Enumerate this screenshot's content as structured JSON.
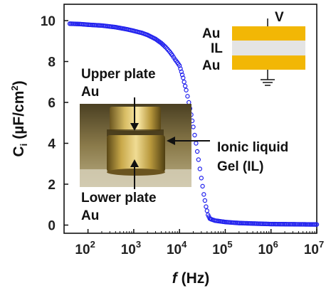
{
  "chart_data": {
    "type": "scatter",
    "xlabel": {
      "italic": "f",
      "rest": " (Hz)"
    },
    "ylabel": {
      "main": "C",
      "sub": "i",
      "rest": " (µF/cm",
      "sup": "2",
      "close": ")"
    },
    "x_scale": "log",
    "xlim": [
      30,
      10000000
    ],
    "ylim": [
      -0.4,
      10.8
    ],
    "x_ticks": [
      {
        "value": 100,
        "base": "10",
        "exp": "2"
      },
      {
        "value": 1000,
        "base": "10",
        "exp": "3"
      },
      {
        "value": 10000,
        "base": "10",
        "exp": "4"
      },
      {
        "value": 100000,
        "base": "10",
        "exp": "5"
      },
      {
        "value": 1000000,
        "base": "10",
        "exp": "6"
      },
      {
        "value": 10000000,
        "base": "10",
        "exp": "7"
      }
    ],
    "y_ticks": [
      0,
      2,
      4,
      6,
      8,
      10
    ],
    "series": [
      {
        "color": "#2222ee",
        "marker": "open-circle",
        "points": [
          [
            40,
            9.85
          ],
          [
            70,
            9.83
          ],
          [
            100,
            9.8
          ],
          [
            200,
            9.76
          ],
          [
            400,
            9.68
          ],
          [
            700,
            9.58
          ],
          [
            1000,
            9.5
          ],
          [
            1500,
            9.4
          ],
          [
            2000,
            9.3
          ],
          [
            3000,
            9.1
          ],
          [
            4000,
            8.9
          ],
          [
            5000,
            8.7
          ],
          [
            6000,
            8.5
          ],
          [
            7000,
            8.3
          ],
          [
            8000,
            8.1
          ],
          [
            9000,
            7.95
          ],
          [
            10000,
            7.8
          ],
          [
            11000,
            7.5
          ],
          [
            12000,
            7.2
          ],
          [
            14000,
            6.6
          ],
          [
            16000,
            6.0
          ],
          [
            18000,
            5.4
          ],
          [
            20000,
            4.8
          ],
          [
            23000,
            4.0
          ],
          [
            26000,
            3.2
          ],
          [
            30000,
            2.3
          ],
          [
            34000,
            1.5
          ],
          [
            38000,
            0.9
          ],
          [
            42000,
            0.5
          ],
          [
            46000,
            0.32
          ],
          [
            50000,
            0.28
          ],
          [
            60000,
            0.22
          ],
          [
            80000,
            0.18
          ],
          [
            100000,
            0.15
          ],
          [
            200000,
            0.1
          ],
          [
            500000,
            0.07
          ],
          [
            1000000,
            0.05
          ],
          [
            3000000,
            0.04
          ],
          [
            10000000,
            0.03
          ]
        ]
      }
    ]
  },
  "inset_schematic": {
    "top_label": "Au",
    "middle_label": "IL",
    "bottom_label": "Au",
    "voltage_label": "V",
    "gold_color": "#f2b705",
    "gel_color": "#e4e4e4"
  },
  "photo_inset": {
    "upper_label_line1": "Upper plate",
    "upper_label_line2": "Au",
    "lower_label_line1": "Lower plate",
    "lower_label_line2": "Au",
    "gel_label_line1": "Ionic liquid",
    "gel_label_line2": "Gel (IL)"
  }
}
